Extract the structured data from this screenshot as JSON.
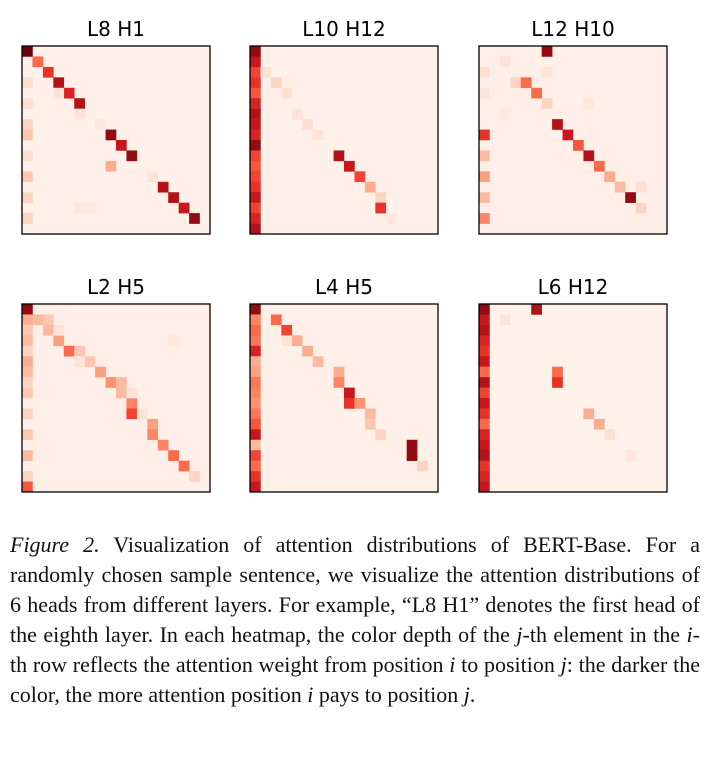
{
  "figure": {
    "caption_label": "Figure 2.",
    "caption_text": "Visualization of attention distributions of BERT-Base. For a randomly chosen sample sentence, we visualize the attention distributions of 6 heads from different layers. For example, “L8 H1” denotes the first head of the eighth layer. In each heatmap, the color depth of the j-th element in the i-th row reflects the attention weight from position i to position j: the darker the color, the more attention position i pays to position j."
  },
  "colors": {
    "low": "#fff1ec",
    "high": "#67000d",
    "frame": "#000000"
  },
  "chart_data": [
    {
      "type": "heatmap",
      "title": "L8 H1",
      "grid": false,
      "size": 18,
      "background": 0.03,
      "cells": [
        [
          0,
          0,
          1
        ],
        [
          1,
          1,
          0.6
        ],
        [
          2,
          2,
          0.75
        ],
        [
          3,
          3,
          0.9
        ],
        [
          4,
          4,
          0.8
        ],
        [
          5,
          5,
          0.9
        ],
        [
          8,
          8,
          0.95
        ],
        [
          9,
          9,
          0.85
        ],
        [
          10,
          10,
          0.95
        ],
        [
          11,
          8,
          0.35
        ],
        [
          13,
          13,
          0.9
        ],
        [
          14,
          14,
          0.9
        ],
        [
          15,
          15,
          0.85
        ],
        [
          16,
          16,
          0.95
        ],
        [
          3,
          0,
          0.15
        ],
        [
          5,
          0,
          0.15
        ],
        [
          7,
          0,
          0.2
        ],
        [
          8,
          0,
          0.25
        ],
        [
          10,
          0,
          0.15
        ],
        [
          12,
          0,
          0.25
        ],
        [
          14,
          0,
          0.2
        ],
        [
          16,
          0,
          0.2
        ],
        [
          4,
          3,
          0.12
        ],
        [
          6,
          5,
          0.12
        ],
        [
          7,
          7,
          0.1
        ],
        [
          12,
          12,
          0.12
        ],
        [
          15,
          5,
          0.1
        ],
        [
          15,
          6,
          0.1
        ]
      ]
    },
    {
      "type": "heatmap",
      "title": "L10 H12",
      "grid": false,
      "size": 18,
      "background": 0.03,
      "cells": [
        [
          0,
          0,
          0.95
        ],
        [
          1,
          0,
          0.85
        ],
        [
          2,
          0,
          0.7
        ],
        [
          3,
          0,
          0.75
        ],
        [
          4,
          0,
          0.65
        ],
        [
          5,
          0,
          0.8
        ],
        [
          6,
          0,
          0.9
        ],
        [
          7,
          0,
          0.85
        ],
        [
          8,
          0,
          0.8
        ],
        [
          9,
          0,
          0.95
        ],
        [
          10,
          0,
          0.7
        ],
        [
          11,
          0,
          0.65
        ],
        [
          12,
          0,
          0.7
        ],
        [
          13,
          0,
          0.75
        ],
        [
          14,
          0,
          0.85
        ],
        [
          15,
          0,
          0.7
        ],
        [
          16,
          0,
          0.8
        ],
        [
          17,
          0,
          0.9
        ],
        [
          2,
          1,
          0.15
        ],
        [
          3,
          2,
          0.2
        ],
        [
          4,
          3,
          0.15
        ],
        [
          6,
          4,
          0.12
        ],
        [
          7,
          5,
          0.15
        ],
        [
          8,
          6,
          0.12
        ],
        [
          10,
          8,
          0.9
        ],
        [
          11,
          9,
          0.85
        ],
        [
          12,
          10,
          0.7
        ],
        [
          13,
          11,
          0.35
        ],
        [
          14,
          12,
          0.2
        ],
        [
          15,
          12,
          0.75
        ],
        [
          16,
          13,
          0.1
        ]
      ]
    },
    {
      "type": "heatmap",
      "title": "L12 H10",
      "grid": false,
      "size": 18,
      "background": 0.04,
      "cells": [
        [
          0,
          6,
          0.95
        ],
        [
          1,
          2,
          0.12
        ],
        [
          3,
          3,
          0.2
        ],
        [
          3,
          4,
          0.6
        ],
        [
          4,
          5,
          0.6
        ],
        [
          5,
          6,
          0.2
        ],
        [
          7,
          7,
          0.9
        ],
        [
          8,
          8,
          0.85
        ],
        [
          9,
          9,
          0.65
        ],
        [
          10,
          10,
          0.9
        ],
        [
          11,
          11,
          0.6
        ],
        [
          12,
          12,
          0.35
        ],
        [
          13,
          13,
          0.3
        ],
        [
          14,
          14,
          0.95
        ],
        [
          15,
          15,
          0.2
        ],
        [
          13,
          15,
          0.15
        ],
        [
          2,
          0,
          0.15
        ],
        [
          4,
          0,
          0.12
        ],
        [
          8,
          0,
          0.75
        ],
        [
          10,
          0,
          0.3
        ],
        [
          12,
          0,
          0.4
        ],
        [
          14,
          0,
          0.3
        ],
        [
          16,
          0,
          0.5
        ],
        [
          2,
          6,
          0.12
        ],
        [
          5,
          10,
          0.1
        ],
        [
          6,
          2,
          0.1
        ]
      ]
    },
    {
      "type": "heatmap",
      "title": "L2 H5",
      "grid": false,
      "size": 18,
      "background": 0.04,
      "cells": [
        [
          0,
          0,
          0.95
        ],
        [
          1,
          0,
          0.35
        ],
        [
          2,
          0,
          0.25
        ],
        [
          3,
          0,
          0.3
        ],
        [
          4,
          0,
          0.2
        ],
        [
          5,
          0,
          0.35
        ],
        [
          6,
          0,
          0.3
        ],
        [
          7,
          0,
          0.2
        ],
        [
          8,
          0,
          0.25
        ],
        [
          10,
          0,
          0.2
        ],
        [
          12,
          0,
          0.25
        ],
        [
          14,
          0,
          0.3
        ],
        [
          16,
          0,
          0.2
        ],
        [
          17,
          0,
          0.65
        ],
        [
          1,
          1,
          0.3
        ],
        [
          1,
          2,
          0.25
        ],
        [
          2,
          2,
          0.3
        ],
        [
          3,
          3,
          0.4
        ],
        [
          4,
          4,
          0.6
        ],
        [
          4,
          5,
          0.25
        ],
        [
          5,
          6,
          0.25
        ],
        [
          6,
          7,
          0.4
        ],
        [
          7,
          8,
          0.45
        ],
        [
          7,
          9,
          0.3
        ],
        [
          8,
          9,
          0.3
        ],
        [
          9,
          10,
          0.5
        ],
        [
          10,
          10,
          0.7
        ],
        [
          11,
          12,
          0.4
        ],
        [
          12,
          12,
          0.5
        ],
        [
          13,
          13,
          0.5
        ],
        [
          14,
          14,
          0.6
        ],
        [
          15,
          15,
          0.6
        ],
        [
          16,
          16,
          0.2
        ],
        [
          2,
          3,
          0.12
        ],
        [
          5,
          5,
          0.12
        ],
        [
          8,
          10,
          0.12
        ],
        [
          10,
          11,
          0.12
        ],
        [
          3,
          14,
          0.1
        ]
      ]
    },
    {
      "type": "heatmap",
      "title": "L4 H5",
      "grid": false,
      "size": 18,
      "background": 0.03,
      "cells": [
        [
          0,
          0,
          0.95
        ],
        [
          1,
          0,
          0.5
        ],
        [
          2,
          0,
          0.6
        ],
        [
          3,
          0,
          0.55
        ],
        [
          4,
          0,
          0.8
        ],
        [
          5,
          0,
          0.35
        ],
        [
          6,
          0,
          0.4
        ],
        [
          7,
          0,
          0.55
        ],
        [
          8,
          0,
          0.5
        ],
        [
          9,
          0,
          0.45
        ],
        [
          10,
          0,
          0.55
        ],
        [
          11,
          0,
          0.65
        ],
        [
          12,
          0,
          0.85
        ],
        [
          13,
          0,
          0.3
        ],
        [
          14,
          0,
          0.7
        ],
        [
          15,
          0,
          0.6
        ],
        [
          16,
          0,
          0.75
        ],
        [
          17,
          0,
          0.85
        ],
        [
          1,
          2,
          0.6
        ],
        [
          2,
          3,
          0.7
        ],
        [
          3,
          4,
          0.35
        ],
        [
          4,
          5,
          0.35
        ],
        [
          5,
          6,
          0.3
        ],
        [
          6,
          8,
          0.35
        ],
        [
          7,
          8,
          0.5
        ],
        [
          8,
          9,
          0.85
        ],
        [
          9,
          9,
          0.75
        ],
        [
          9,
          10,
          0.45
        ],
        [
          10,
          11,
          0.3
        ],
        [
          11,
          11,
          0.25
        ],
        [
          12,
          12,
          0.2
        ],
        [
          13,
          15,
          0.95
        ],
        [
          14,
          15,
          0.95
        ],
        [
          15,
          16,
          0.2
        ],
        [
          3,
          3,
          0.12
        ]
      ]
    },
    {
      "type": "heatmap",
      "title": "L6 H12",
      "grid": false,
      "size": 18,
      "background": 0.025,
      "cells": [
        [
          0,
          0,
          0.95
        ],
        [
          1,
          0,
          0.85
        ],
        [
          2,
          0,
          0.9
        ],
        [
          3,
          0,
          0.8
        ],
        [
          4,
          0,
          0.75
        ],
        [
          5,
          0,
          0.85
        ],
        [
          6,
          0,
          0.6
        ],
        [
          7,
          0,
          0.9
        ],
        [
          8,
          0,
          0.7
        ],
        [
          9,
          0,
          0.85
        ],
        [
          10,
          0,
          0.75
        ],
        [
          11,
          0,
          0.6
        ],
        [
          12,
          0,
          0.8
        ],
        [
          13,
          0,
          0.85
        ],
        [
          14,
          0,
          0.9
        ],
        [
          15,
          0,
          0.75
        ],
        [
          16,
          0,
          0.8
        ],
        [
          17,
          0,
          0.85
        ],
        [
          0,
          5,
          0.9
        ],
        [
          1,
          2,
          0.12
        ],
        [
          6,
          7,
          0.6
        ],
        [
          7,
          7,
          0.75
        ],
        [
          10,
          10,
          0.35
        ],
        [
          11,
          11,
          0.35
        ],
        [
          12,
          12,
          0.15
        ],
        [
          14,
          14,
          0.1
        ]
      ]
    }
  ]
}
